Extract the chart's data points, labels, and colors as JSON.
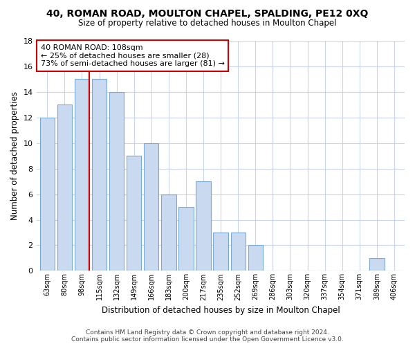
{
  "title": "40, ROMAN ROAD, MOULTON CHAPEL, SPALDING, PE12 0XQ",
  "subtitle": "Size of property relative to detached houses in Moulton Chapel",
  "xlabel": "Distribution of detached houses by size in Moulton Chapel",
  "ylabel": "Number of detached properties",
  "bin_labels": [
    "63sqm",
    "80sqm",
    "98sqm",
    "115sqm",
    "132sqm",
    "149sqm",
    "166sqm",
    "183sqm",
    "200sqm",
    "217sqm",
    "235sqm",
    "252sqm",
    "269sqm",
    "286sqm",
    "303sqm",
    "320sqm",
    "337sqm",
    "354sqm",
    "371sqm",
    "389sqm",
    "406sqm"
  ],
  "bar_heights": [
    12,
    13,
    15,
    15,
    14,
    9,
    10,
    6,
    5,
    7,
    3,
    3,
    2,
    0,
    0,
    0,
    0,
    0,
    0,
    1,
    0
  ],
  "bar_color": "#c9d9ef",
  "bar_edge_color": "#7aaad4",
  "red_line_after_index": 2,
  "annotation_line1": "40 ROMAN ROAD: 108sqm",
  "annotation_line2": "← 25% of detached houses are smaller (28)",
  "annotation_line3": "73% of semi-detached houses are larger (81) →",
  "annotation_box_color": "#ffffff",
  "annotation_box_edge": "#cc0000",
  "ylim": [
    0,
    18
  ],
  "yticks": [
    0,
    2,
    4,
    6,
    8,
    10,
    12,
    14,
    16,
    18
  ],
  "footer_line1": "Contains HM Land Registry data © Crown copyright and database right 2024.",
  "footer_line2": "Contains public sector information licensed under the Open Government Licence v3.0.",
  "background_color": "#ffffff",
  "grid_color": "#ccd5e8",
  "bar_width": 0.85
}
